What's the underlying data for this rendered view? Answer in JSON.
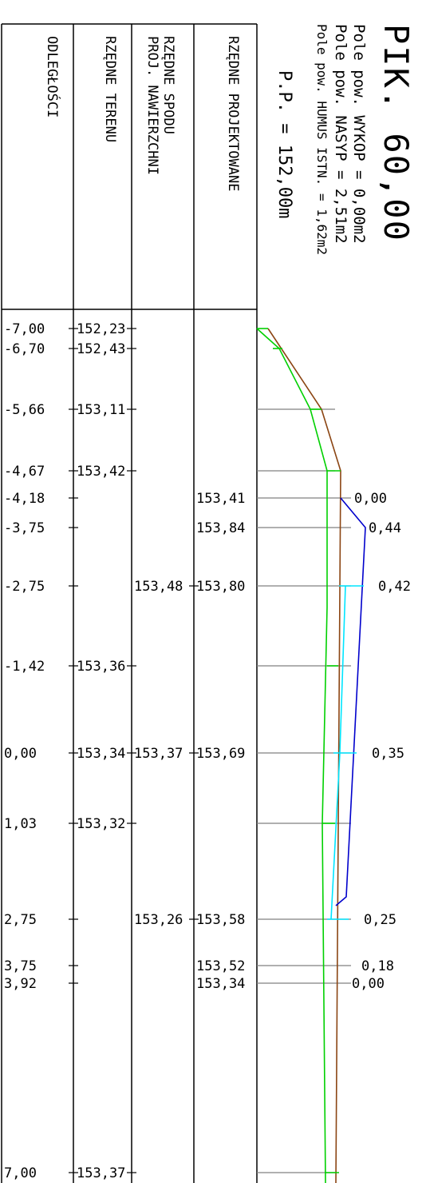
{
  "header": {
    "title": "PIK. 60,00",
    "area_cut": "Pole pow. WYKOP = 0,00m2",
    "area_fill": "Pole pow. NASYP = 2,51m2",
    "area_topsoil": "Pole pow. HUMUS ISTN. = 1,62m2",
    "datum": "P.P. = 152,00m"
  },
  "row_labels": {
    "distances": "ODLEGŁOŚCI",
    "terrain": "RZĘDNE TERENU",
    "subgrade_1": "RZĘDNE SPODU",
    "subgrade_2": "PROJ. NAWIERZCHNI",
    "design": "RZĘDNE PROJEKTOWANE"
  },
  "colors": {
    "terrain_line": "#8B4513",
    "topsoil_line": "#00EE00",
    "design_line": "#0000CC",
    "subgrade_line": "#00E5FF",
    "grid_line": "#808080"
  },
  "stations": [
    {
      "offset": "-7,00",
      "terrain": "152,23",
      "subgrade": "",
      "design": ""
    },
    {
      "offset": "-6,70",
      "terrain": "152,43",
      "subgrade": "",
      "design": ""
    },
    {
      "offset": "-5,66",
      "terrain": "153,11",
      "subgrade": "",
      "design": ""
    },
    {
      "offset": "-4,67",
      "terrain": "153,42",
      "subgrade": "",
      "design": ""
    },
    {
      "offset": "-4,18",
      "terrain": "",
      "subgrade": "",
      "design": "153,41"
    },
    {
      "offset": "-3,75",
      "terrain": "",
      "subgrade": "",
      "design": "153,84"
    },
    {
      "offset": "-2,75",
      "terrain": "",
      "subgrade": "153,48",
      "design": "153,80"
    },
    {
      "offset": "-1,42",
      "terrain": "153,36",
      "subgrade": "",
      "design": ""
    },
    {
      "offset": "0,00",
      "terrain": "153,34",
      "subgrade": "153,37",
      "design": "153,69"
    },
    {
      "offset": "1,03",
      "terrain": "153,32",
      "subgrade": "",
      "design": ""
    },
    {
      "offset": "2,75",
      "terrain": "",
      "subgrade": "153,26",
      "design": "153,58"
    },
    {
      "offset": "3,75",
      "terrain": "",
      "subgrade": "",
      "design": "153,52"
    },
    {
      "offset": "3,92",
      "terrain": "",
      "subgrade": "",
      "design": "153,34"
    },
    {
      "offset": "7,00",
      "terrain": "153,37",
      "subgrade": "",
      "design": ""
    }
  ],
  "thickness_labels": [
    "0,00",
    "0,44",
    "0,42",
    "0,35",
    "0,25",
    "0,18",
    "0,00"
  ]
}
